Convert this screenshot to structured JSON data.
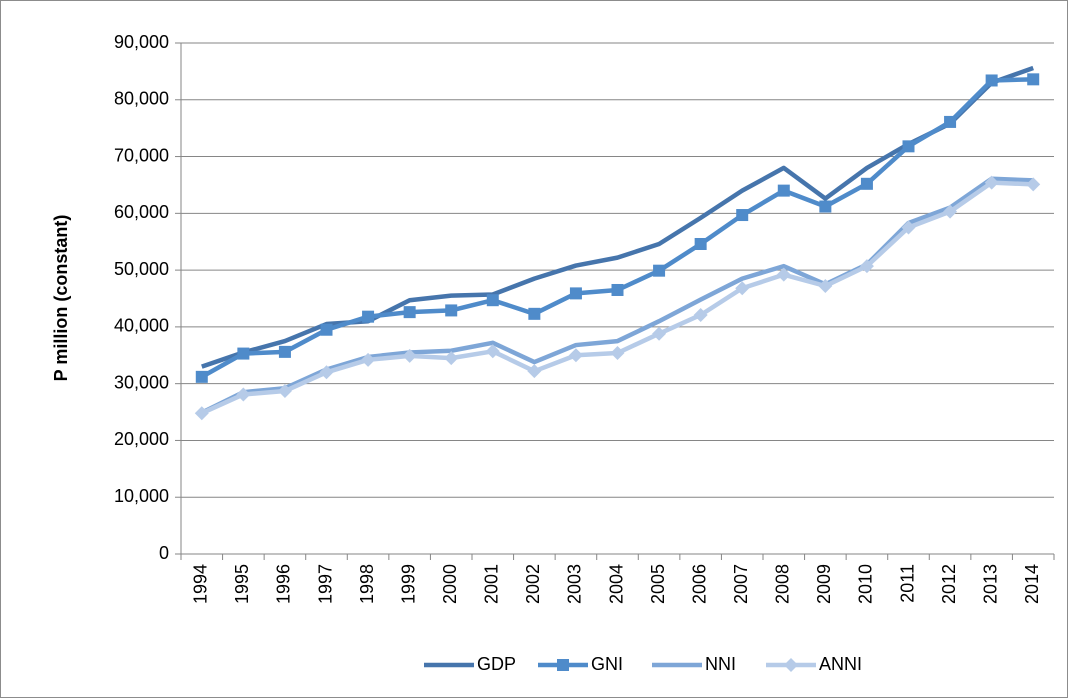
{
  "chart_data": {
    "type": "line",
    "y_label": "P million (constant)",
    "categories": [
      "1994",
      "1995",
      "1996",
      "1997",
      "1998",
      "1999",
      "2000",
      "2001",
      "2002",
      "2003",
      "2004",
      "2005",
      "2006",
      "2007",
      "2008",
      "2009",
      "2010",
      "2011",
      "2012",
      "2013",
      "2014"
    ],
    "series": [
      {
        "name": "GDP",
        "color": "#4675ac",
        "values": [
          33000,
          35500,
          37500,
          40500,
          41000,
          44700,
          45500,
          45700,
          48500,
          50800,
          52200,
          54600,
          59200,
          64000,
          68000,
          62600,
          68000,
          72200,
          75800,
          83000,
          85600
        ]
      },
      {
        "name": "GNI",
        "color": "#4f8bca",
        "marker": "square",
        "values": [
          31200,
          35300,
          35600,
          39500,
          41800,
          42600,
          42900,
          44700,
          42300,
          45900,
          46500,
          49900,
          54600,
          59700,
          64000,
          61200,
          65200,
          71800,
          76100,
          83400,
          83600
        ]
      },
      {
        "name": "NNI",
        "color": "#7ea6d7",
        "values": [
          24900,
          28500,
          29200,
          32500,
          34700,
          35500,
          35800,
          37200,
          33800,
          36800,
          37500,
          41000,
          44800,
          48500,
          50700,
          47500,
          51000,
          58300,
          61000,
          66100,
          65800
        ]
      },
      {
        "name": "ANNI",
        "color": "#b6cbe8",
        "marker": "diamond",
        "values": [
          24800,
          28100,
          28700,
          32000,
          34200,
          34900,
          34500,
          35700,
          32200,
          35000,
          35400,
          38800,
          42100,
          46800,
          49200,
          47200,
          50700,
          57500,
          60300,
          65400,
          65100
        ]
      }
    ],
    "ylim": [
      0,
      90000
    ],
    "yticks": [
      0,
      {
        "value": 10000,
        "label": "10,000"
      },
      {
        "value": 20000,
        "label": "20,000"
      },
      {
        "value": 30000,
        "label": "30,000"
      },
      {
        "value": 40000,
        "label": "40,000"
      },
      {
        "value": 50000,
        "label": "50,000"
      },
      {
        "value": 60000,
        "label": "60,000"
      },
      {
        "value": 70000,
        "label": "70,000"
      },
      {
        "value": 80000,
        "label": "80,000"
      },
      {
        "value": 90000,
        "label": "90,000"
      }
    ],
    "grid": true,
    "legend": "bottom"
  }
}
